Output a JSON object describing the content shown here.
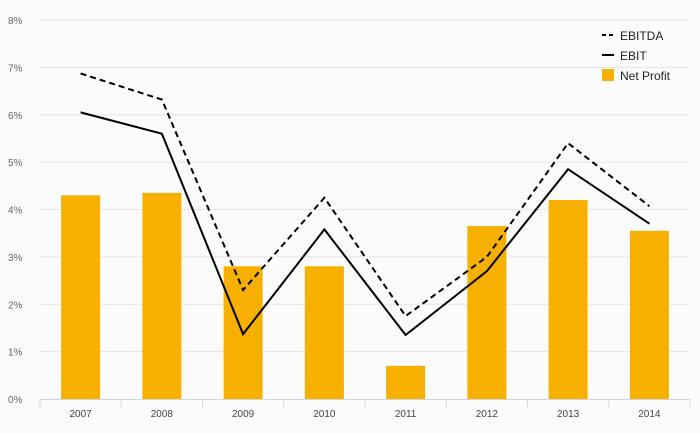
{
  "chart_data": {
    "type": "bar",
    "categories": [
      "2007",
      "2008",
      "2009",
      "2010",
      "2011",
      "2012",
      "2013",
      "2014"
    ],
    "series": [
      {
        "name": "Net Profit",
        "type": "bar",
        "color": "#f8b000",
        "values": [
          4.3,
          4.35,
          2.8,
          2.8,
          0.7,
          3.65,
          4.2,
          3.55
        ]
      },
      {
        "name": "EBITDA",
        "type": "line",
        "style": "dashed",
        "color": "#000000",
        "values": [
          6.87,
          6.32,
          2.3,
          4.25,
          1.75,
          3.0,
          5.4,
          4.07
        ]
      },
      {
        "name": "EBIT",
        "type": "line",
        "style": "solid",
        "color": "#000000",
        "values": [
          6.05,
          5.6,
          1.37,
          3.58,
          1.35,
          2.7,
          4.85,
          3.7
        ]
      }
    ],
    "yticks": [
      "0%",
      "1%",
      "2%",
      "3%",
      "4%",
      "5%",
      "6%",
      "7%",
      "8%"
    ],
    "ylim": [
      0,
      8
    ],
    "grid": true,
    "legend_position": "top-right",
    "legend": [
      "EBITDA",
      "EBIT",
      "Net Profit"
    ]
  }
}
